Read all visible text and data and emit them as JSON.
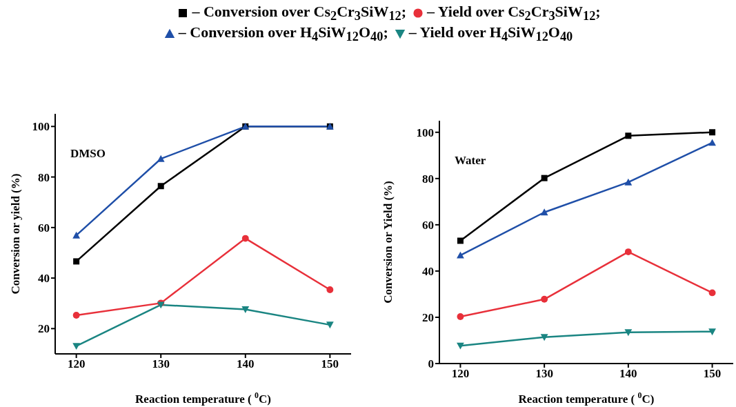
{
  "chart_data": [
    {
      "type": "line",
      "annotations": [
        "DMSO"
      ],
      "xlabel": "Reaction temperature ( $^{0}$C)",
      "ylabel": "Conversion or yield  (%)",
      "x": [
        120,
        130,
        140,
        150
      ],
      "xlim": [
        117.5,
        152.5
      ],
      "xticks": [
        120,
        130,
        140,
        150
      ],
      "ylim": [
        10,
        105
      ],
      "yticks": [
        20,
        40,
        60,
        80,
        100
      ],
      "legend": "top",
      "grid": false,
      "series": [
        {
          "name": "– Conversion over Cs$_{2}$Cr$_{3}$SiW$_{12}$;",
          "color": "#000000",
          "marker": "square",
          "values": [
            46.6,
            76.4,
            100,
            100
          ]
        },
        {
          "name": "– Yield over Cs$_{2}$Cr$_{3}$SiW$_{12}$;",
          "color": "#e8303a",
          "marker": "circle",
          "values": [
            25.3,
            30.1,
            55.7,
            35.4
          ]
        },
        {
          "name": "– Conversion over H$_{4}$SiW$_{12}$O$_{40}$;",
          "color": "#1f4fa8",
          "marker": "triangle",
          "values": [
            56.9,
            87.2,
            100,
            100
          ]
        },
        {
          "name": "– Yield over H$_{4}$SiW$_{12}$O$_{40}$",
          "color": "#1a8582",
          "marker": "triangle-down",
          "values": [
            13.1,
            29.4,
            27.6,
            21.5
          ]
        }
      ]
    },
    {
      "type": "line",
      "annotations": [
        "Water"
      ],
      "xlabel": "Reaction temperature ( $^{0}$C)",
      "ylabel": "Conversion or Yield (%)",
      "x": [
        120,
        130,
        140,
        150
      ],
      "xlim": [
        117.5,
        152.5
      ],
      "xticks": [
        120,
        130,
        140,
        150
      ],
      "ylim": [
        0,
        105
      ],
      "yticks": [
        0,
        20,
        40,
        60,
        80,
        100
      ],
      "grid": false,
      "series": [
        {
          "color": "#000000",
          "marker": "square",
          "values": [
            53.1,
            80.2,
            98.5,
            100
          ]
        },
        {
          "color": "#e8303a",
          "marker": "circle",
          "values": [
            20.3,
            27.8,
            48.3,
            30.6
          ]
        },
        {
          "color": "#1f4fa8",
          "marker": "triangle",
          "values": [
            46.8,
            65.4,
            78.4,
            95.5
          ]
        },
        {
          "color": "#1a8582",
          "marker": "triangle-down",
          "values": [
            7.7,
            11.4,
            13.5,
            13.8
          ]
        }
      ]
    }
  ]
}
